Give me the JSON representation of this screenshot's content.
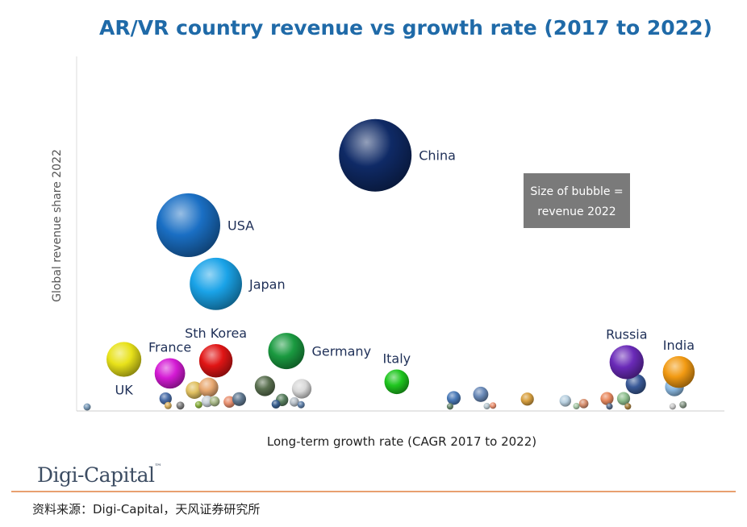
{
  "logo_text": "Digi-Capital",
  "source_text": "资料来源：Digi-Capital，天风证券研究所",
  "chart_data": {
    "type": "scatter",
    "title": "AR/VR country revenue vs growth rate (2017 to 2022)",
    "xlabel": "Long-term growth rate (CAGR 2017 to 2022)",
    "ylabel": "Global revenue share 2022",
    "legend_note": "Size of bubble = revenue 2022",
    "legend_note_lines": [
      "Size of bubble =",
      "revenue 2022"
    ],
    "legend_placement": "right",
    "grid": false,
    "labeled": [
      {
        "name": "China",
        "x": 0.47,
        "y": 0.9,
        "r": 1.0,
        "color": "#0f2a66",
        "label_side": "right"
      },
      {
        "name": "USA",
        "x": 0.165,
        "y": 0.65,
        "r": 0.88,
        "color": "#1a6fc4",
        "label_side": "right"
      },
      {
        "name": "Japan",
        "x": 0.21,
        "y": 0.44,
        "r": 0.72,
        "color": "#1aa3e8",
        "label_side": "right"
      },
      {
        "name": "UK",
        "x": 0.06,
        "y": 0.17,
        "r": 0.48,
        "color": "#e8e21a",
        "label_side": "below"
      },
      {
        "name": "France",
        "x": 0.135,
        "y": 0.12,
        "r": 0.42,
        "color": "#d41ad4",
        "label_side": "above"
      },
      {
        "name": "Sth Korea",
        "x": 0.21,
        "y": 0.165,
        "r": 0.46,
        "color": "#e01515",
        "label_side": "above"
      },
      {
        "name": "Germany",
        "x": 0.325,
        "y": 0.2,
        "r": 0.5,
        "color": "#1a9a40",
        "label_side": "right"
      },
      {
        "name": "Italy",
        "x": 0.505,
        "y": 0.09,
        "r": 0.34,
        "color": "#1fc61f",
        "label_side": "above"
      },
      {
        "name": "Russia",
        "x": 0.88,
        "y": 0.16,
        "r": 0.47,
        "color": "#6a2ab8",
        "label_side": "above"
      },
      {
        "name": "India",
        "x": 0.965,
        "y": 0.125,
        "r": 0.44,
        "color": "#f29a12",
        "label_side": "above"
      }
    ],
    "unlabeled": [
      {
        "x": 0.0,
        "y": 0.0,
        "r": 0.1,
        "color": "#7a9ab8"
      },
      {
        "x": 0.128,
        "y": 0.03,
        "r": 0.17,
        "color": "#4a6ea8"
      },
      {
        "x": 0.132,
        "y": 0.005,
        "r": 0.1,
        "color": "#d8b060"
      },
      {
        "x": 0.152,
        "y": 0.005,
        "r": 0.11,
        "color": "#808080"
      },
      {
        "x": 0.175,
        "y": 0.06,
        "r": 0.24,
        "color": "#e0c060"
      },
      {
        "x": 0.182,
        "y": 0.008,
        "r": 0.1,
        "color": "#8ab040"
      },
      {
        "x": 0.198,
        "y": 0.07,
        "r": 0.27,
        "color": "#e8a870"
      },
      {
        "x": 0.196,
        "y": 0.02,
        "r": 0.16,
        "color": "#c8d0d8"
      },
      {
        "x": 0.208,
        "y": 0.02,
        "r": 0.14,
        "color": "#a8b888"
      },
      {
        "x": 0.232,
        "y": 0.018,
        "r": 0.16,
        "color": "#e89070"
      },
      {
        "x": 0.248,
        "y": 0.028,
        "r": 0.19,
        "color": "#607890"
      },
      {
        "x": 0.29,
        "y": 0.075,
        "r": 0.28,
        "color": "#5a7050"
      },
      {
        "x": 0.318,
        "y": 0.025,
        "r": 0.17,
        "color": "#5a8060"
      },
      {
        "x": 0.308,
        "y": 0.01,
        "r": 0.12,
        "color": "#3a6090"
      },
      {
        "x": 0.338,
        "y": 0.018,
        "r": 0.13,
        "color": "#b8c0c8"
      },
      {
        "x": 0.35,
        "y": 0.065,
        "r": 0.27,
        "color": "#d8d8d8"
      },
      {
        "x": 0.349,
        "y": 0.008,
        "r": 0.1,
        "color": "#6080a8"
      },
      {
        "x": 0.598,
        "y": 0.032,
        "r": 0.19,
        "color": "#4a7ab8"
      },
      {
        "x": 0.592,
        "y": 0.002,
        "r": 0.09,
        "color": "#6a8a70"
      },
      {
        "x": 0.642,
        "y": 0.045,
        "r": 0.21,
        "color": "#6a8ab8"
      },
      {
        "x": 0.652,
        "y": 0.003,
        "r": 0.09,
        "color": "#b8c8d0"
      },
      {
        "x": 0.662,
        "y": 0.005,
        "r": 0.09,
        "color": "#e89070"
      },
      {
        "x": 0.718,
        "y": 0.028,
        "r": 0.18,
        "color": "#d8a040"
      },
      {
        "x": 0.78,
        "y": 0.022,
        "r": 0.16,
        "color": "#b8d0e0"
      },
      {
        "x": 0.81,
        "y": 0.012,
        "r": 0.13,
        "color": "#d89070"
      },
      {
        "x": 0.798,
        "y": 0.003,
        "r": 0.09,
        "color": "#a8c8a8"
      },
      {
        "x": 0.848,
        "y": 0.03,
        "r": 0.18,
        "color": "#e88a60"
      },
      {
        "x": 0.852,
        "y": 0.002,
        "r": 0.09,
        "color": "#5a7090"
      },
      {
        "x": 0.875,
        "y": 0.03,
        "r": 0.18,
        "color": "#90c090"
      },
      {
        "x": 0.882,
        "y": 0.002,
        "r": 0.09,
        "color": "#a88040"
      },
      {
        "x": 0.895,
        "y": 0.082,
        "r": 0.28,
        "color": "#3a5a98"
      },
      {
        "x": 0.958,
        "y": 0.072,
        "r": 0.26,
        "color": "#8ab8e0"
      },
      {
        "x": 0.955,
        "y": 0.002,
        "r": 0.09,
        "color": "#c8c8c8"
      },
      {
        "x": 0.972,
        "y": 0.008,
        "r": 0.1,
        "color": "#8a9a8a"
      }
    ]
  }
}
